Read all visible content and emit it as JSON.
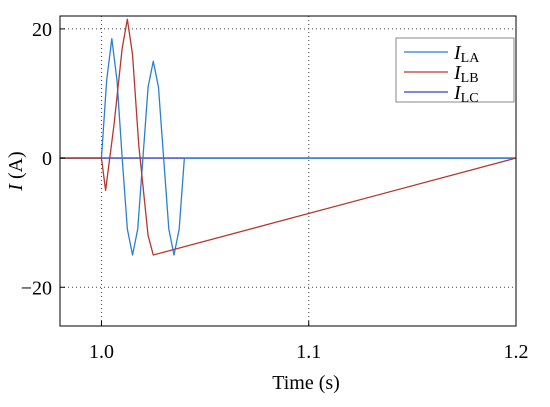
{
  "chart_data": {
    "type": "line",
    "title": "",
    "xlabel": "Time (s)",
    "ylabel_italic": "I",
    "ylabel_rest": " (A)",
    "xlim": [
      0.98,
      1.2
    ],
    "ylim": [
      -26,
      22
    ],
    "x_ticks": [
      {
        "value": 1.0,
        "label": "1.0"
      },
      {
        "value": 1.1,
        "label": "1.1"
      },
      {
        "value": 1.2,
        "label": "1.2"
      }
    ],
    "y_ticks": [
      {
        "value": 20,
        "label": "20"
      },
      {
        "value": 0,
        "label": "0"
      },
      {
        "value": -20,
        "label": "−20"
      }
    ],
    "grid": "dotted, at ticks",
    "legend_position": "top-right",
    "series": [
      {
        "name_main": "I",
        "name_sub": "LA",
        "color": "#2a7fd4",
        "points": [
          [
            0.98,
            0
          ],
          [
            1.0,
            0
          ],
          [
            1.0025,
            12
          ],
          [
            1.005,
            18.5
          ],
          [
            1.0075,
            12
          ],
          [
            1.01,
            0
          ],
          [
            1.0125,
            -11
          ],
          [
            1.015,
            -15
          ],
          [
            1.0175,
            -11
          ],
          [
            1.02,
            0
          ],
          [
            1.0225,
            11
          ],
          [
            1.025,
            15
          ],
          [
            1.0275,
            11
          ],
          [
            1.03,
            0
          ],
          [
            1.0325,
            -11
          ],
          [
            1.035,
            -15
          ],
          [
            1.0375,
            -11
          ],
          [
            1.04,
            0
          ],
          [
            1.2,
            0
          ]
        ]
      },
      {
        "name_main": "I",
        "name_sub": "LB",
        "color": "#b5382e",
        "points": [
          [
            0.98,
            0
          ],
          [
            1.0,
            0
          ],
          [
            1.002,
            -5
          ],
          [
            1.006,
            5
          ],
          [
            1.01,
            17
          ],
          [
            1.0125,
            21.5
          ],
          [
            1.015,
            16
          ],
          [
            1.018,
            2
          ],
          [
            1.0225,
            -12
          ],
          [
            1.025,
            -15
          ],
          [
            1.2,
            0
          ]
        ]
      },
      {
        "name_main": "I",
        "name_sub": "LC",
        "color": "#3a3fc8",
        "points": [
          [
            0.98,
            0
          ],
          [
            1.2,
            0
          ]
        ]
      }
    ]
  }
}
